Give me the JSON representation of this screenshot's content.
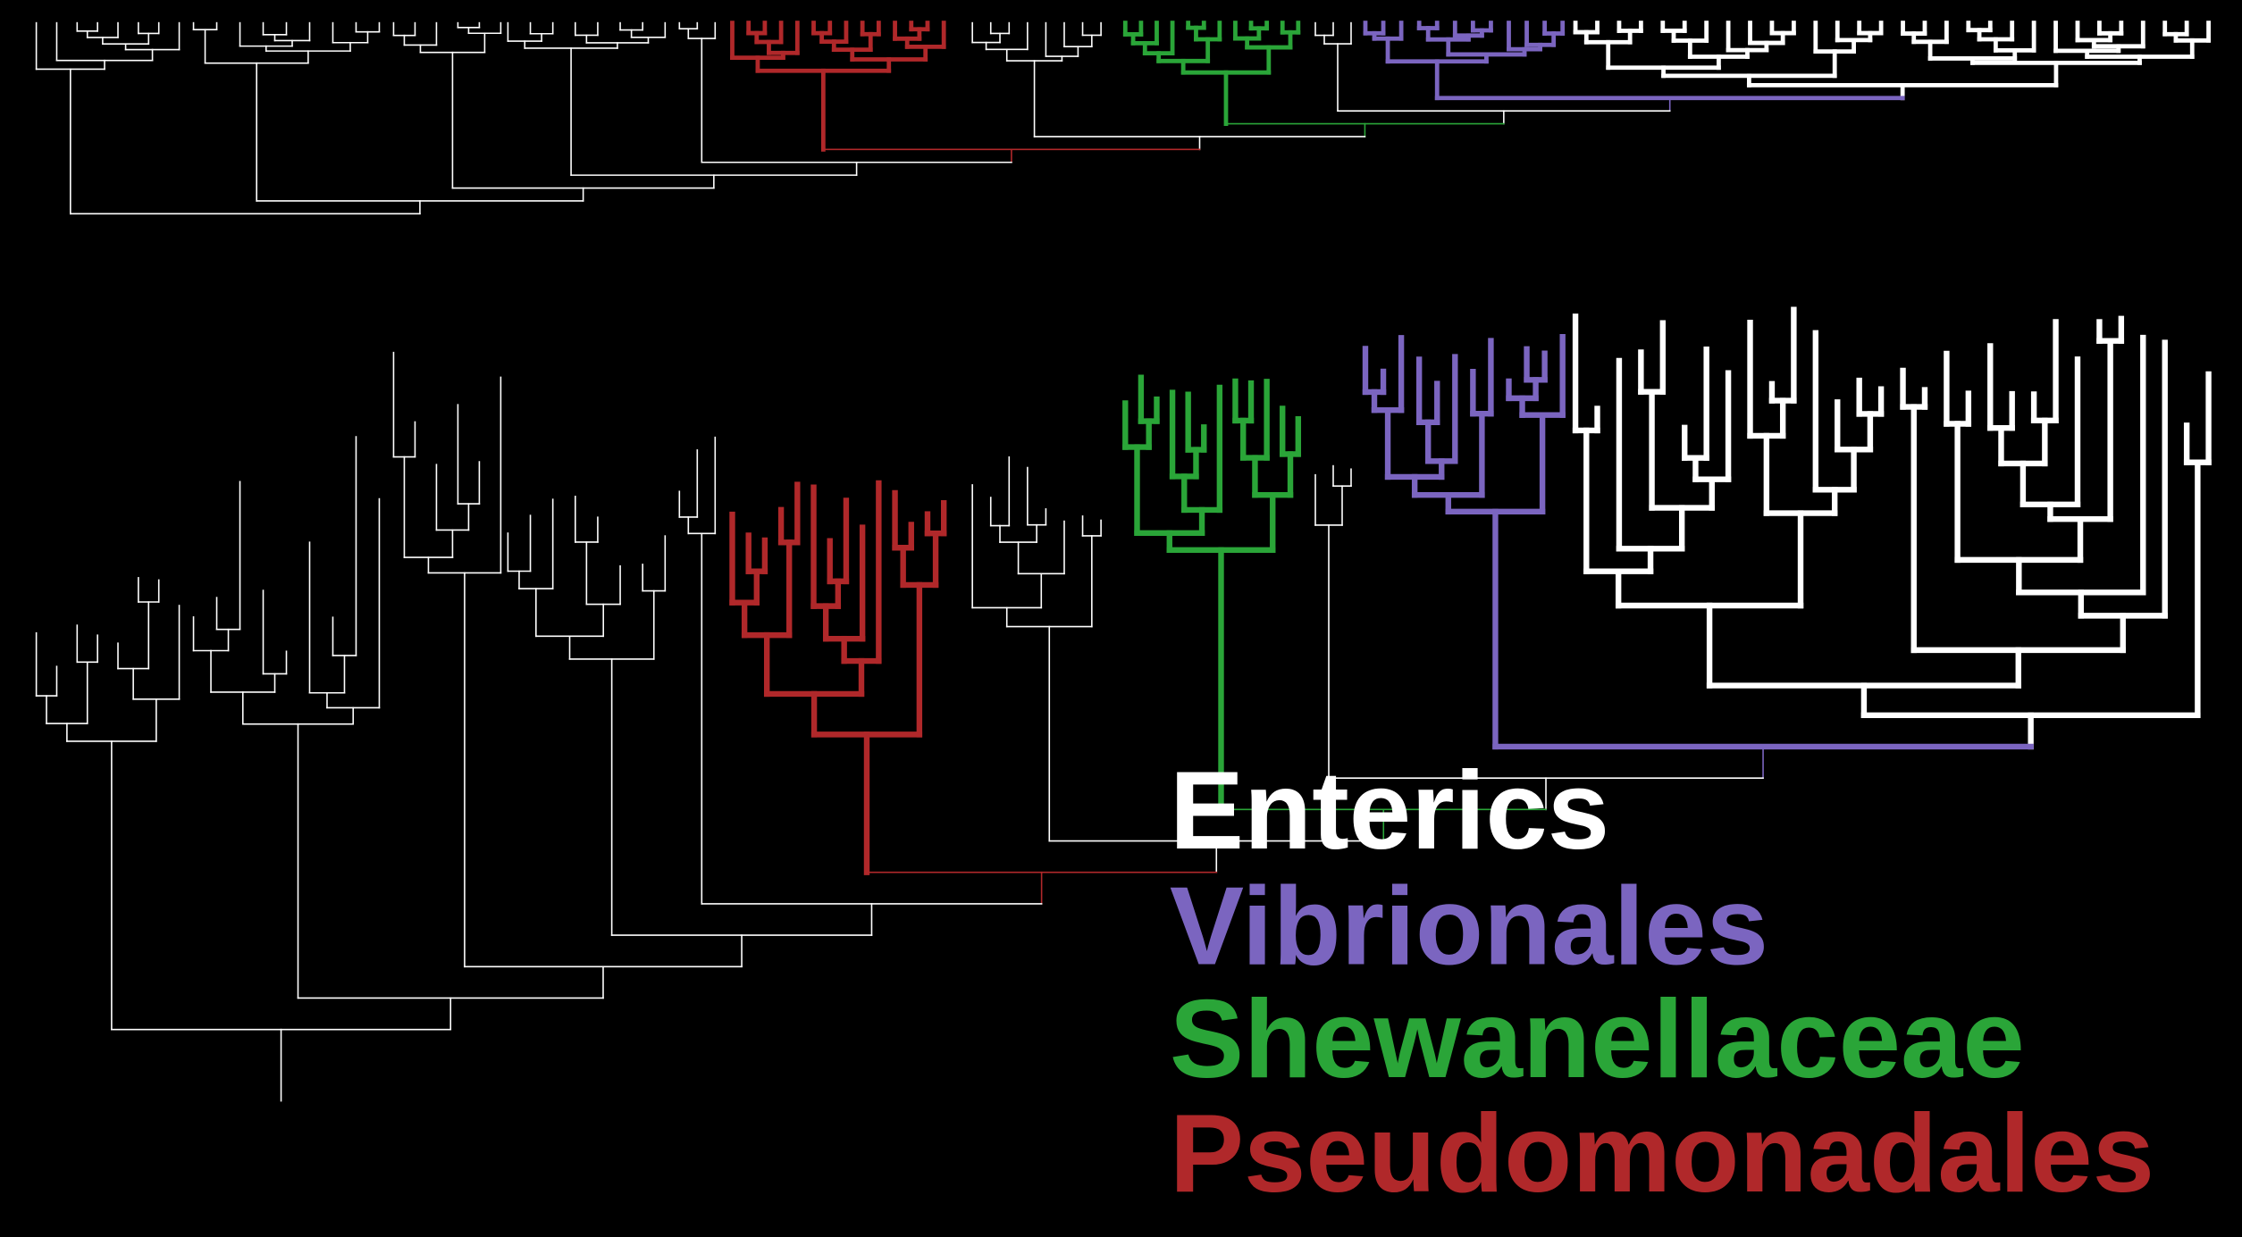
{
  "legend": {
    "items": [
      {
        "label": "Enterics",
        "color": "#ffffff"
      },
      {
        "label": "Vibrionales",
        "color": "#7b65c0"
      },
      {
        "label": "Shewanellaceae",
        "color": "#2aa538"
      },
      {
        "label": "Pseudomonadales",
        "color": "#b0282a"
      }
    ]
  }
}
